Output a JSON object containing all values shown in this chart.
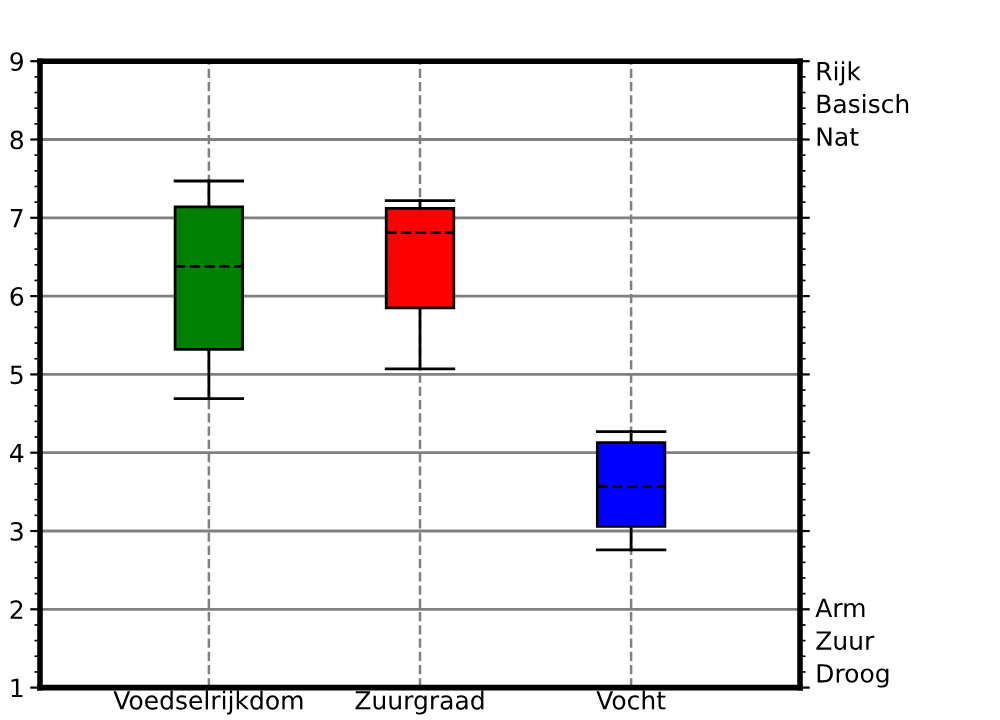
{
  "chart_data": {
    "type": "box",
    "categories": [
      "Voedselrijkdom",
      "Zuurgraad",
      "Vocht"
    ],
    "boxes": [
      {
        "low": 4.69,
        "q1": 5.32,
        "median": 6.38,
        "q3": 7.14,
        "high": 7.47
      },
      {
        "low": 5.07,
        "q1": 5.85,
        "median": 6.81,
        "q3": 7.12,
        "high": 7.22
      },
      {
        "low": 2.76,
        "q1": 3.06,
        "median": 3.57,
        "q3": 4.13,
        "high": 4.27
      }
    ],
    "colors": [
      "#008000",
      "#ff0000",
      "#0000ff"
    ],
    "ylim": [
      1,
      9
    ],
    "yticks": [
      1,
      2,
      3,
      4,
      5,
      6,
      7,
      8,
      9
    ],
    "grid": true,
    "annotations": [
      "Rijk\nBasisch\nNat",
      "Arm\nZuur\nDroog"
    ]
  }
}
